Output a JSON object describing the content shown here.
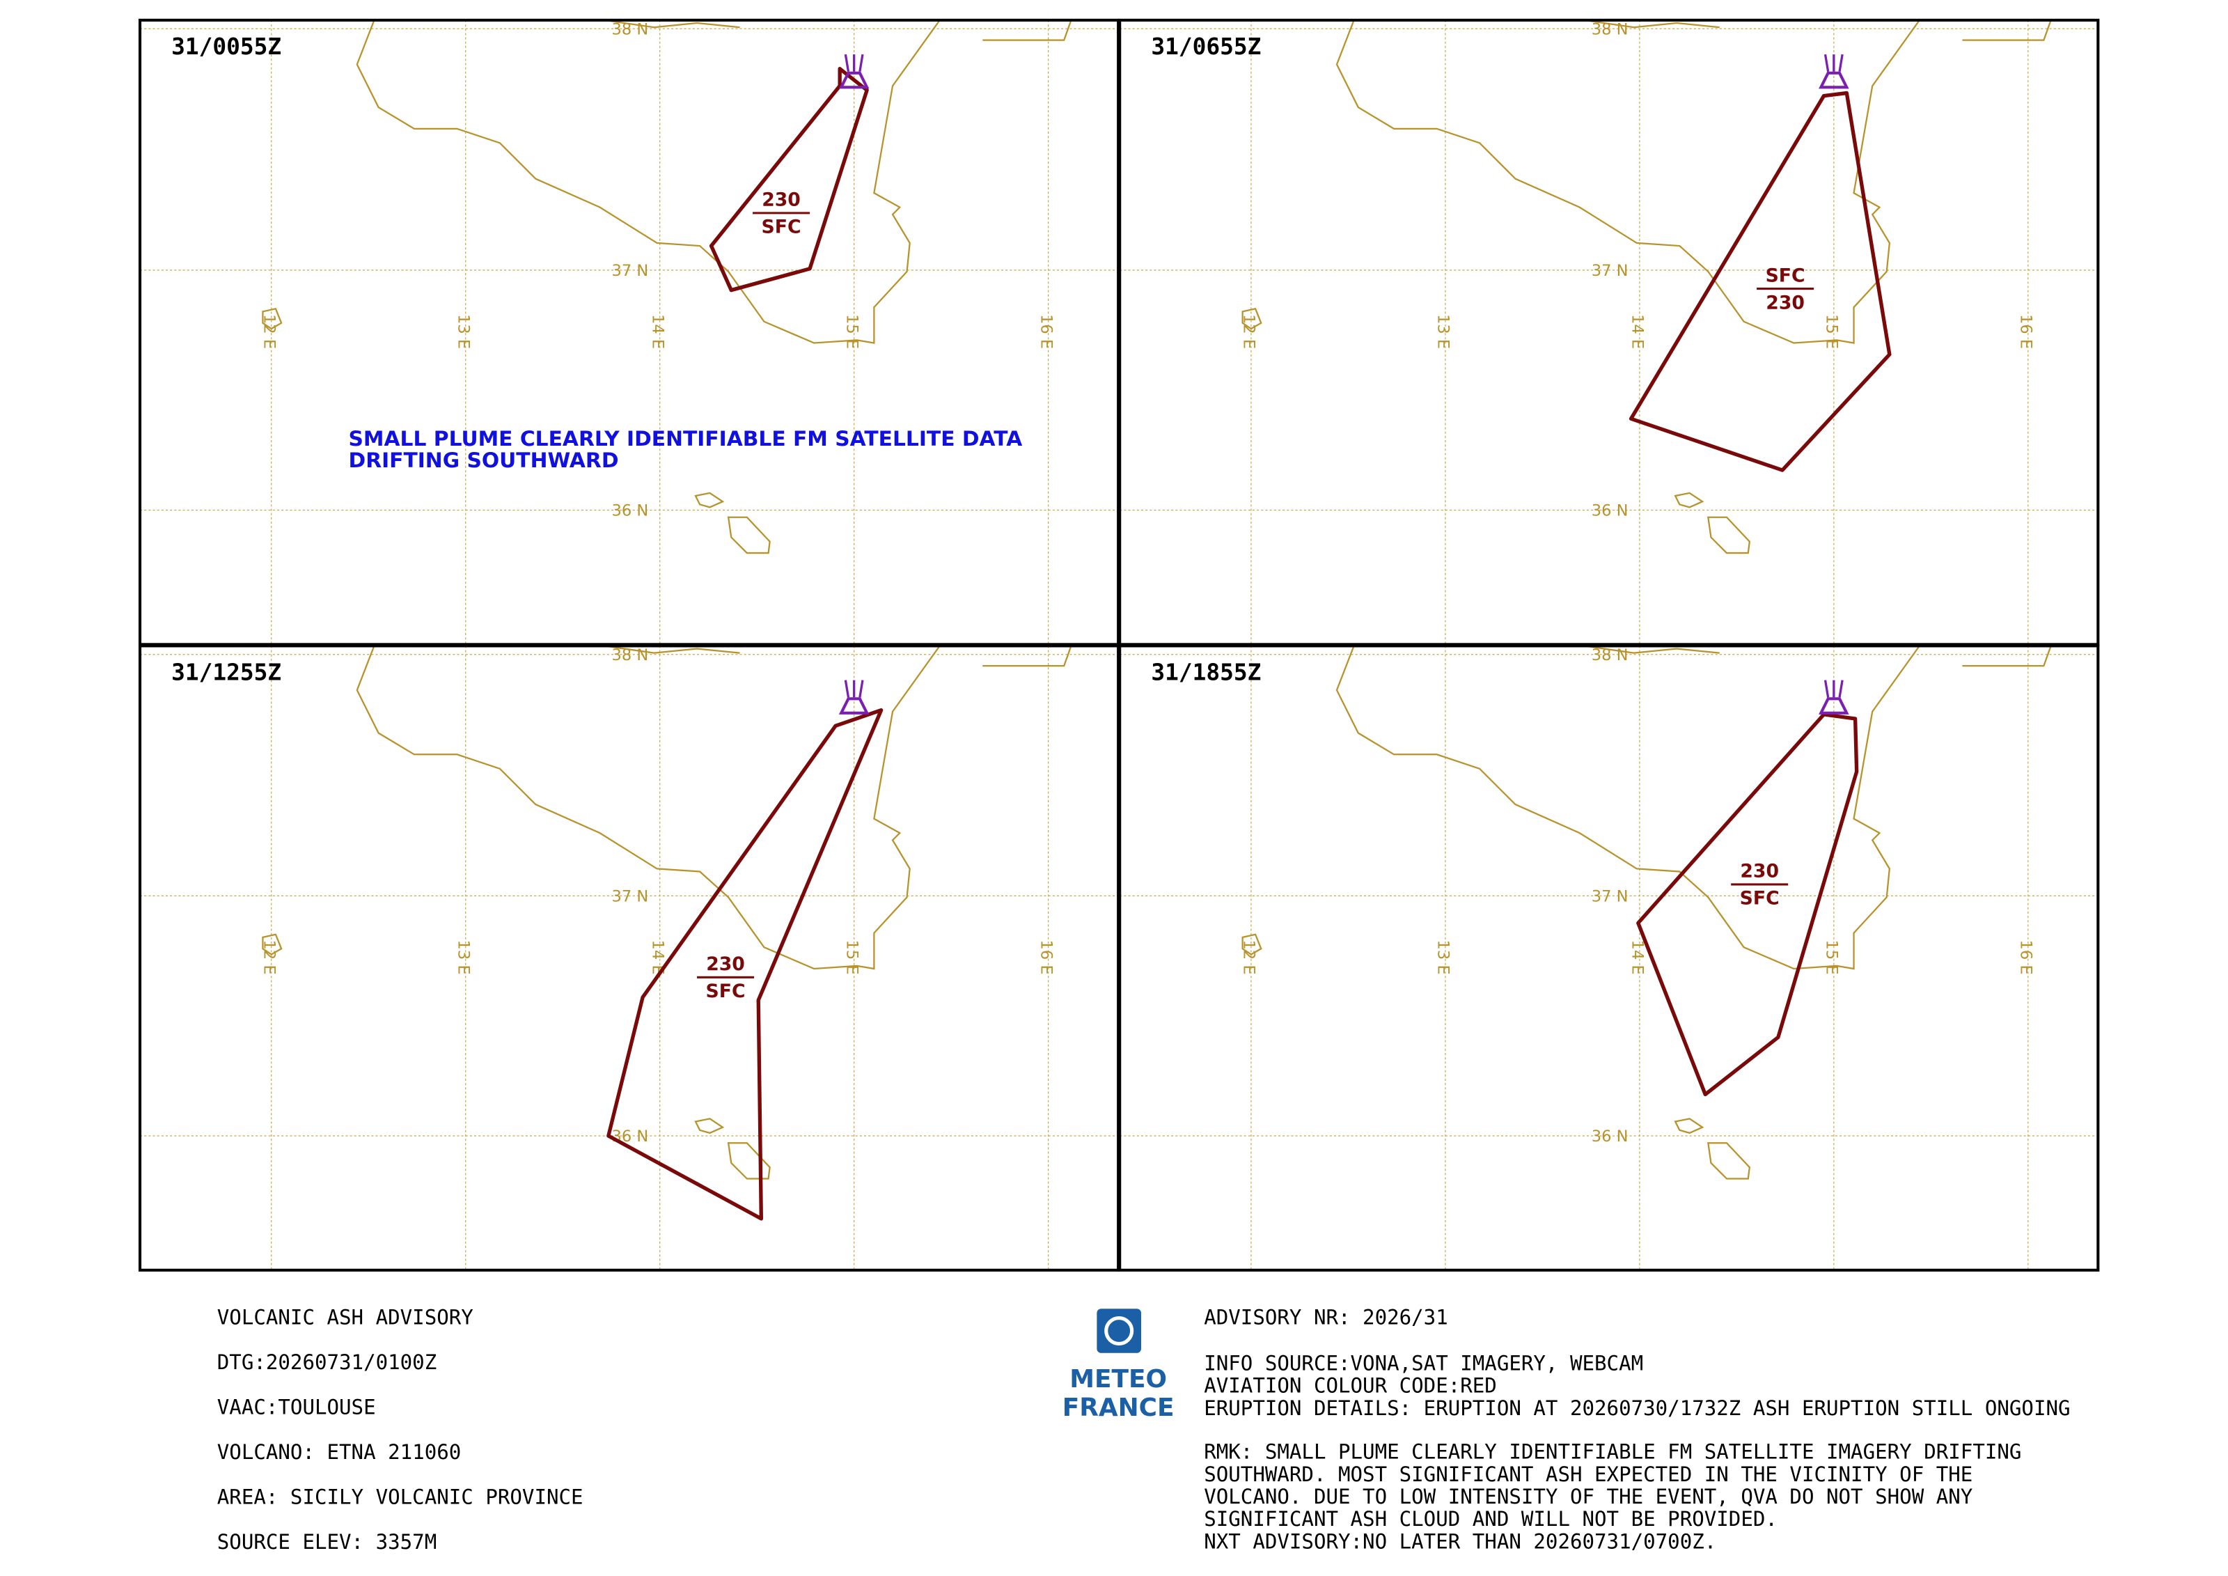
{
  "panels": [
    {
      "time": "31/0055Z",
      "upper": "230",
      "lower": "SFC",
      "note": [
        "SMALL PLUME CLEARLY IDENTIFIABLE FM SATELLITE DATA",
        "DRIFTING SOUTHWARD"
      ]
    },
    {
      "time": "31/0655Z",
      "upper": "SFC",
      "lower": "230"
    },
    {
      "time": "31/1255Z",
      "upper": "230",
      "lower": "SFC"
    },
    {
      "time": "31/1855Z",
      "upper": "230",
      "lower": "SFC"
    }
  ],
  "grid": {
    "lat": [
      "38 N",
      "37 N",
      "36 N"
    ],
    "lon": [
      "12 E",
      "13 E",
      "14 E",
      "15 E",
      "16 E"
    ]
  },
  "logo": [
    "METEO",
    "FRANCE"
  ],
  "advisory": {
    "left": [
      "VOLCANIC ASH ADVISORY",
      "DTG:20260731/0100Z",
      "VAAC:TOULOUSE",
      "VOLCANO: ETNA 211060",
      "AREA: SICILY VOLCANIC PROVINCE",
      "SOURCE ELEV: 3357M"
    ],
    "right": [
      [
        "ADVISORY NR: 2026/31"
      ],
      [
        "INFO SOURCE:VONA,SAT IMAGERY, WEBCAM",
        "AVIATION COLOUR CODE:RED",
        "ERUPTION DETAILS: ERUPTION AT 20260730/1732Z ASH ERUPTION STILL ONGOING"
      ],
      [
        "RMK: SMALL PLUME CLEARLY IDENTIFIABLE FM SATELLITE  IMAGERY DRIFTING",
        "SOUTHWARD. MOST  SIGNIFICANT ASH EXPECTED IN THE VICINITY OF THE",
        "VOLCANO. DUE TO LOW INTENSITY OF THE EVENT, QVA  DO NOT SHOW ANY",
        "SIGNIFICANT ASH CLOUD AND WILL  NOT BE PROVIDED.",
        "NXT ADVISORY:NO LATER THAN 20260731/0700Z."
      ]
    ]
  }
}
